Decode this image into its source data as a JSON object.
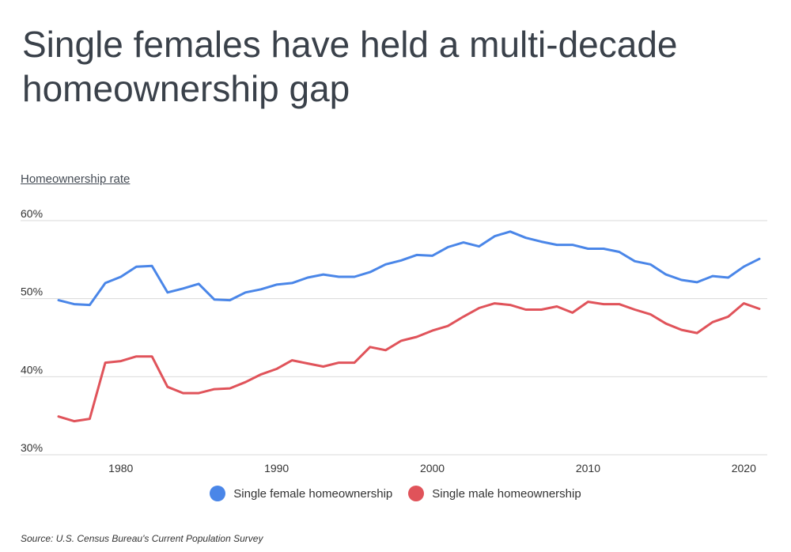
{
  "title": "Single females have held a multi-decade homeownership gap",
  "source": "Source:  U.S. Census Bureau's Current Population Survey",
  "colors": {
    "female": "#4a86e8",
    "male": "#e0535a",
    "grid": "#d9d9d9"
  },
  "chart_data": {
    "type": "line",
    "ylabel": "Homeownership rate",
    "ylim": [
      30,
      60
    ],
    "yticks": [
      "30%",
      "40%",
      "50%",
      "60%"
    ],
    "yticks_values": [
      30,
      40,
      50,
      60
    ],
    "xticks": [
      "1980",
      "1990",
      "2000",
      "2010",
      "2020"
    ],
    "xticks_values": [
      1980,
      1990,
      2000,
      2010,
      2020
    ],
    "xlim": [
      1976,
      2021
    ],
    "grid": true,
    "legend_position": "bottom",
    "x": [
      1976,
      1977,
      1978,
      1979,
      1980,
      1981,
      1982,
      1983,
      1984,
      1985,
      1986,
      1987,
      1988,
      1989,
      1990,
      1991,
      1992,
      1993,
      1994,
      1995,
      1996,
      1997,
      1998,
      1999,
      2000,
      2001,
      2002,
      2003,
      2004,
      2005,
      2006,
      2007,
      2008,
      2009,
      2010,
      2011,
      2012,
      2013,
      2014,
      2015,
      2016,
      2017,
      2018,
      2019,
      2020,
      2021
    ],
    "series": [
      {
        "name": "Single female homeownership",
        "values": [
          49.8,
          49.3,
          49.2,
          52,
          52.8,
          54.1,
          54.2,
          50.8,
          51.3,
          51.9,
          49.9,
          49.8,
          50.8,
          51.2,
          51.8,
          52,
          52.7,
          53.1,
          52.8,
          52.8,
          53.4,
          54.4,
          54.9,
          55.6,
          55.5,
          56.6,
          57.2,
          56.7,
          58,
          58.6,
          57.8,
          57.3,
          56.9,
          56.9,
          56.4,
          56.4,
          56,
          54.8,
          54.4,
          53.1,
          52.4,
          52.1,
          52.9,
          52.7,
          54.1,
          55.1
        ]
      },
      {
        "name": "Single male homeownership",
        "values": [
          34.9,
          34.3,
          34.6,
          41.8,
          42,
          42.6,
          42.6,
          38.7,
          37.9,
          37.9,
          38.4,
          38.5,
          39.3,
          40.3,
          41,
          42.1,
          41.7,
          41.3,
          41.8,
          41.8,
          43.8,
          43.4,
          44.6,
          45.1,
          45.9,
          46.5,
          47.7,
          48.8,
          49.4,
          49.2,
          48.6,
          48.6,
          49,
          48.2,
          49.6,
          49.3,
          49.3,
          48.6,
          48,
          46.8,
          46,
          45.6,
          47,
          47.7,
          49.4,
          48.7
        ]
      }
    ]
  }
}
